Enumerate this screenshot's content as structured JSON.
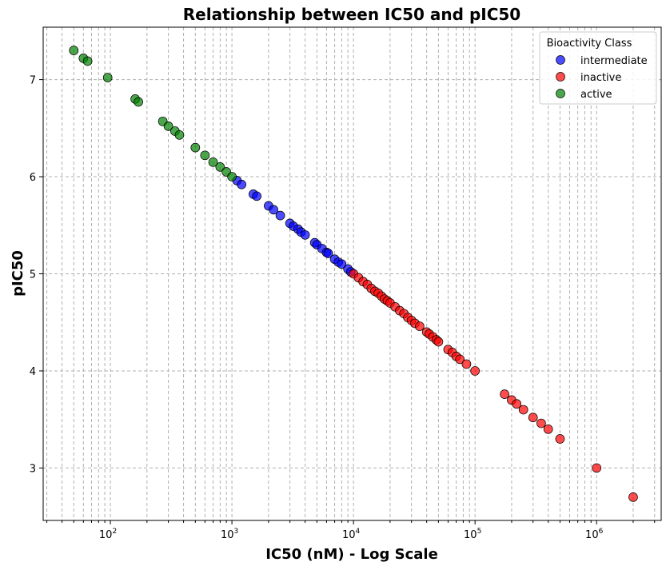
{
  "chart_data": {
    "type": "scatter",
    "title": "Relationship between IC50 and pIC50",
    "xlabel": "IC50 (nM) - Log Scale",
    "ylabel": "pIC50",
    "xscale": "log",
    "xlim": [
      28,
      3400000
    ],
    "ylim": [
      2.46,
      7.54
    ],
    "x_ticks": [
      {
        "value": 100,
        "base": "10",
        "exp": "2"
      },
      {
        "value": 1000,
        "base": "10",
        "exp": "3"
      },
      {
        "value": 10000,
        "base": "10",
        "exp": "4"
      },
      {
        "value": 100000,
        "base": "10",
        "exp": "5"
      },
      {
        "value": 1000000,
        "base": "10",
        "exp": "6"
      }
    ],
    "y_ticks": [
      3,
      4,
      5,
      6,
      7
    ],
    "grid": true,
    "legend": {
      "title": "Bioactivity Class",
      "placement": "top-right"
    },
    "series": [
      {
        "name": "intermediate",
        "color": "#0000ff",
        "x": [
          1100,
          1200,
          1500,
          1600,
          2000,
          2200,
          2500,
          3000,
          3200,
          3500,
          3700,
          4000,
          4800,
          5000,
          5500,
          6000,
          6200,
          7000,
          7500,
          8000,
          9000,
          9500
        ],
        "y": [
          5.96,
          5.92,
          5.82,
          5.8,
          5.7,
          5.66,
          5.6,
          5.52,
          5.49,
          5.46,
          5.43,
          5.4,
          5.32,
          5.3,
          5.26,
          5.22,
          5.21,
          5.15,
          5.12,
          5.1,
          5.05,
          5.02
        ]
      },
      {
        "name": "inactive",
        "color": "#ff0000",
        "x": [
          10000,
          11000,
          12000,
          13000,
          14000,
          15000,
          16000,
          17000,
          18000,
          19000,
          20000,
          22000,
          24000,
          26000,
          28000,
          30000,
          32000,
          35000,
          40000,
          42000,
          45000,
          48000,
          50000,
          60000,
          65000,
          70000,
          75000,
          85000,
          100000,
          175000,
          200000,
          220000,
          250000,
          300000,
          350000,
          400000,
          500000,
          1000000,
          2000000
        ],
        "y": [
          5.0,
          4.96,
          4.92,
          4.89,
          4.85,
          4.82,
          4.8,
          4.77,
          4.74,
          4.72,
          4.7,
          4.66,
          4.62,
          4.59,
          4.55,
          4.52,
          4.49,
          4.46,
          4.4,
          4.38,
          4.35,
          4.32,
          4.3,
          4.22,
          4.19,
          4.15,
          4.12,
          4.07,
          4.0,
          3.76,
          3.7,
          3.66,
          3.6,
          3.52,
          3.46,
          3.4,
          3.3,
          3.0,
          2.7
        ]
      },
      {
        "name": "active",
        "color": "#008000",
        "x": [
          50,
          60,
          65,
          95,
          160,
          170,
          270,
          300,
          340,
          370,
          500,
          600,
          700,
          800,
          900,
          1000
        ],
        "y": [
          7.3,
          7.22,
          7.19,
          7.02,
          6.8,
          6.77,
          6.57,
          6.52,
          6.47,
          6.43,
          6.3,
          6.22,
          6.15,
          6.1,
          6.05,
          6.0
        ]
      }
    ]
  }
}
